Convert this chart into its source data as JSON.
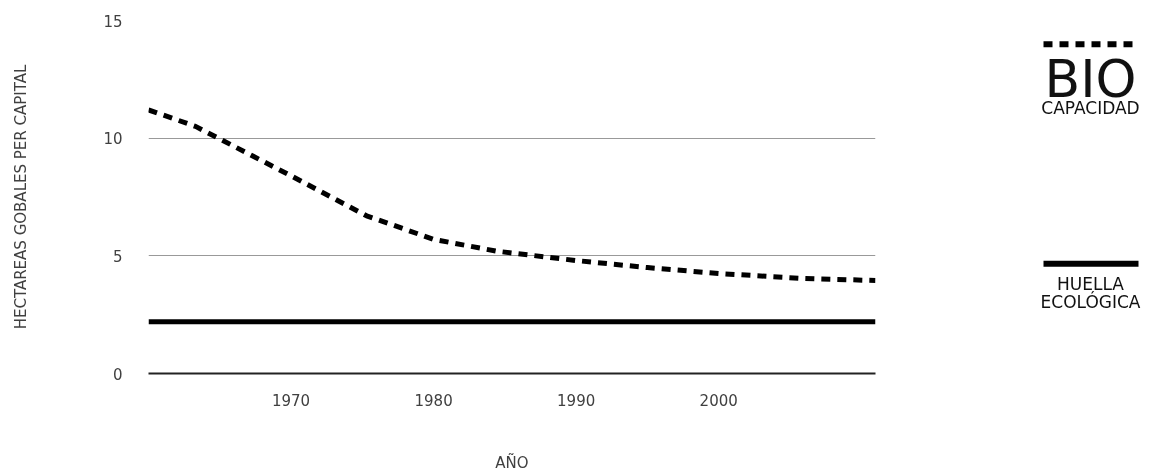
{
  "chart_data": {
    "type": "line",
    "xlabel": "AÑO",
    "ylabel": "HECTAREAS GOBALES PER CAPITAL",
    "xlim": [
      1960,
      2011
    ],
    "xticks": [
      1970,
      1980,
      1990,
      2000
    ],
    "ylim": [
      0,
      15
    ],
    "yticks": [
      0,
      5,
      10,
      15
    ],
    "grid": "y",
    "legend": "right",
    "series": [
      {
        "name": "BIO\nCAPACIDAD",
        "color": "#000000",
        "line_style": "dashed",
        "x": [
          1960,
          1963.3,
          1970,
          1975.3,
          1980,
          1984.4,
          1990,
          1995,
          2000,
          2005.6,
          2011
        ],
        "values": [
          11.2,
          10.5,
          8.4,
          6.7,
          5.7,
          5.2,
          4.8,
          4.5,
          4.25,
          4.05,
          3.95
        ]
      },
      {
        "name": "HUELLA\nECOLÓGICA",
        "color": "#000000",
        "line_style": "solid",
        "x": [
          1960,
          2011
        ],
        "values": [
          2.2,
          2.2
        ]
      }
    ]
  }
}
